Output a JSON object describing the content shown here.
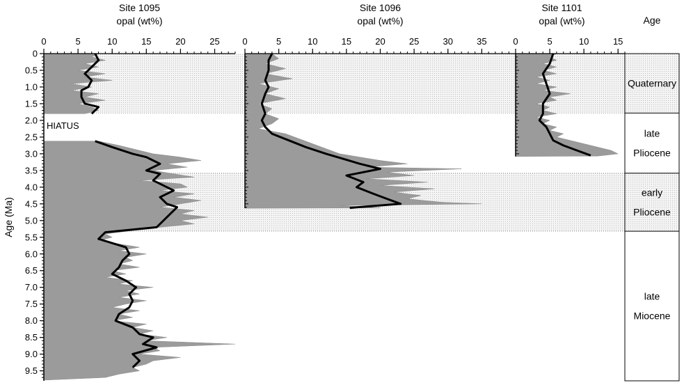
{
  "chart_data": {
    "type": "area",
    "y_axis": {
      "label": "Age (Ma)",
      "range": [
        0,
        9.8
      ],
      "reversed": true,
      "ticks": [
        "0",
        "0.5",
        "1.0",
        "1.5",
        "2.0",
        "2.5",
        "3.0",
        "3.5",
        "4.0",
        "4.5",
        "5.0",
        "5.5",
        "6.0",
        "6.5",
        "7.0",
        "7.5",
        "8.0",
        "8.5",
        "9.0",
        "9.5"
      ]
    },
    "panels": [
      {
        "title_line1": "Site 1095",
        "title_line2": "opal (wt%)",
        "xlim": [
          0,
          28
        ],
        "ticks": [
          "0",
          "5",
          "10",
          "15",
          "20",
          "25"
        ],
        "annotation": "HIATUS",
        "raw_segments": [
          [
            [
              0,
              8
            ],
            [
              0.1,
              7
            ],
            [
              0.2,
              9
            ],
            [
              0.3,
              6
            ],
            [
              0.4,
              8
            ],
            [
              0.5,
              5
            ],
            [
              0.6,
              9
            ],
            [
              0.7,
              6
            ],
            [
              0.8,
              10
            ],
            [
              0.9,
              4
            ],
            [
              1.0,
              7
            ],
            [
              1.1,
              4
            ],
            [
              1.2,
              8
            ],
            [
              1.3,
              6
            ],
            [
              1.4,
              9
            ],
            [
              1.5,
              5
            ],
            [
              1.6,
              7
            ],
            [
              1.7,
              8
            ],
            [
              1.8,
              6
            ]
          ],
          [
            [
              2.62,
              8
            ],
            [
              2.75,
              11
            ],
            [
              2.9,
              14
            ],
            [
              3.0,
              16
            ],
            [
              3.1,
              20
            ],
            [
              3.2,
              23
            ],
            [
              3.3,
              18
            ],
            [
              3.4,
              21
            ],
            [
              3.5,
              16
            ],
            [
              3.6,
              19
            ],
            [
              3.7,
              22
            ],
            [
              3.8,
              14
            ],
            [
              3.9,
              20
            ],
            [
              4.0,
              21
            ],
            [
              4.1,
              17
            ],
            [
              4.2,
              22
            ],
            [
              4.3,
              19
            ],
            [
              4.4,
              23
            ],
            [
              4.5,
              20
            ],
            [
              4.6,
              17
            ],
            [
              4.7,
              22
            ],
            [
              4.8,
              20
            ],
            [
              4.9,
              24
            ],
            [
              5.0,
              20
            ],
            [
              5.1,
              22
            ],
            [
              5.2,
              17
            ],
            [
              5.3,
              13
            ],
            [
              5.4,
              9
            ],
            [
              5.5,
              10
            ],
            [
              5.6,
              8
            ],
            [
              5.7,
              11
            ],
            [
              5.8,
              14
            ],
            [
              5.9,
              11
            ],
            [
              6.0,
              15
            ],
            [
              6.1,
              12
            ],
            [
              6.2,
              13
            ],
            [
              6.3,
              11
            ],
            [
              6.4,
              14
            ],
            [
              6.5,
              10
            ],
            [
              6.6,
              12
            ],
            [
              6.7,
              9
            ],
            [
              6.8,
              13
            ],
            [
              6.9,
              11
            ],
            [
              7.0,
              16
            ],
            [
              7.1,
              12
            ],
            [
              7.2,
              14
            ],
            [
              7.3,
              11
            ],
            [
              7.4,
              15
            ],
            [
              7.5,
              12
            ],
            [
              7.6,
              10
            ],
            [
              7.7,
              14
            ],
            [
              7.8,
              11
            ],
            [
              7.9,
              13
            ],
            [
              8.0,
              10
            ],
            [
              8.1,
              15
            ],
            [
              8.2,
              13
            ],
            [
              8.3,
              16
            ],
            [
              8.4,
              14
            ],
            [
              8.5,
              18
            ],
            [
              8.6,
              15
            ],
            [
              8.7,
              28
            ],
            [
              8.8,
              16
            ],
            [
              8.9,
              17
            ],
            [
              9.0,
              14
            ],
            [
              9.1,
              20
            ],
            [
              9.2,
              16
            ],
            [
              9.3,
              15
            ],
            [
              9.4,
              13
            ],
            [
              9.5,
              14
            ],
            [
              9.6,
              11
            ],
            [
              9.7,
              9
            ],
            [
              9.78,
              0
            ]
          ]
        ],
        "smooth_segments": [
          [
            [
              0,
              7.5
            ],
            [
              0.2,
              8
            ],
            [
              0.4,
              7
            ],
            [
              0.6,
              6
            ],
            [
              0.8,
              7
            ],
            [
              1.0,
              6.5
            ],
            [
              1.1,
              5.5
            ],
            [
              1.3,
              5.5
            ],
            [
              1.5,
              6
            ],
            [
              1.6,
              8
            ],
            [
              1.8,
              7
            ]
          ],
          [
            [
              2.62,
              7.5
            ],
            [
              2.8,
              10
            ],
            [
              3.0,
              13
            ],
            [
              3.1,
              15
            ],
            [
              3.2,
              16
            ],
            [
              3.3,
              17
            ],
            [
              3.5,
              15
            ],
            [
              3.6,
              17
            ],
            [
              3.8,
              16
            ],
            [
              4.0,
              18
            ],
            [
              4.1,
              19
            ],
            [
              4.3,
              17
            ],
            [
              4.5,
              18
            ],
            [
              4.6,
              19.5
            ],
            [
              4.8,
              18.5
            ],
            [
              5.0,
              17.5
            ],
            [
              5.2,
              16.5
            ],
            [
              5.35,
              9
            ],
            [
              5.55,
              8
            ],
            [
              5.8,
              12
            ],
            [
              6.0,
              12.5
            ],
            [
              6.2,
              11.5
            ],
            [
              6.4,
              11
            ],
            [
              6.6,
              10
            ],
            [
              6.8,
              12
            ],
            [
              7.0,
              13.5
            ],
            [
              7.2,
              12.5
            ],
            [
              7.4,
              13
            ],
            [
              7.6,
              12.5
            ],
            [
              7.8,
              11
            ],
            [
              8.0,
              10.5
            ],
            [
              8.2,
              13
            ],
            [
              8.4,
              14
            ],
            [
              8.5,
              16
            ],
            [
              8.7,
              14.5
            ],
            [
              8.8,
              16.5
            ],
            [
              9.0,
              13
            ],
            [
              9.2,
              14
            ],
            [
              9.4,
              13
            ]
          ]
        ]
      },
      {
        "title_line1": "Site 1096",
        "title_line2": "opal (wt%)",
        "xlim": [
          0,
          40
        ],
        "ticks": [
          "0",
          "5",
          "10",
          "15",
          "20",
          "25",
          "30",
          "35"
        ],
        "raw_segments": [
          [
            [
              0,
              4
            ],
            [
              0.15,
              5
            ],
            [
              0.3,
              3
            ],
            [
              0.45,
              6
            ],
            [
              0.6,
              3
            ],
            [
              0.75,
              7
            ],
            [
              0.9,
              2
            ],
            [
              1.05,
              5
            ],
            [
              1.2,
              3
            ],
            [
              1.35,
              6
            ],
            [
              1.5,
              2
            ],
            [
              1.65,
              4
            ],
            [
              1.8,
              3
            ],
            [
              1.95,
              5
            ],
            [
              2.1,
              4
            ],
            [
              2.25,
              2
            ],
            [
              2.4,
              6
            ],
            [
              2.55,
              8
            ],
            [
              2.7,
              10
            ],
            [
              2.85,
              12
            ],
            [
              3.0,
              14
            ],
            [
              3.1,
              17
            ],
            [
              3.2,
              20
            ],
            [
              3.3,
              24
            ],
            [
              3.4,
              18
            ],
            [
              3.45,
              32
            ],
            [
              3.55,
              21
            ],
            [
              3.65,
              25
            ],
            [
              3.75,
              18
            ],
            [
              3.85,
              27
            ],
            [
              3.95,
              20
            ],
            [
              4.05,
              28
            ],
            [
              4.15,
              22
            ],
            [
              4.25,
              26
            ],
            [
              4.35,
              24
            ],
            [
              4.45,
              29
            ],
            [
              4.5,
              35
            ],
            [
              4.55,
              14
            ],
            [
              4.62,
              20
            ],
            [
              4.63,
              0
            ]
          ]
        ],
        "smooth_segments": [
          [
            [
              0,
              4
            ],
            [
              0.2,
              3.5
            ],
            [
              0.5,
              3.5
            ],
            [
              0.8,
              3
            ],
            [
              1.0,
              3.5
            ],
            [
              1.2,
              3
            ],
            [
              1.5,
              2.5
            ],
            [
              1.8,
              3
            ],
            [
              2.0,
              2.5
            ],
            [
              2.2,
              3
            ],
            [
              2.4,
              4
            ],
            [
              2.6,
              6.5
            ],
            [
              2.8,
              9
            ],
            [
              3.0,
              12
            ],
            [
              3.15,
              14.5
            ],
            [
              3.3,
              17
            ],
            [
              3.45,
              20
            ],
            [
              3.65,
              15
            ],
            [
              3.85,
              17.5
            ],
            [
              4.0,
              16.5
            ],
            [
              4.2,
              19
            ],
            [
              4.35,
              21
            ],
            [
              4.5,
              23
            ],
            [
              4.62,
              15.5
            ]
          ]
        ]
      },
      {
        "title_line1": "Site 1101",
        "title_line2": "opal (wt%)",
        "xlim": [
          0,
          16
        ],
        "ticks": [
          "0",
          "5",
          "10",
          "15"
        ],
        "raw_segments": [
          [
            [
              0,
              6
            ],
            [
              0.1,
              5
            ],
            [
              0.2,
              6
            ],
            [
              0.3,
              4
            ],
            [
              0.4,
              6
            ],
            [
              0.5,
              4
            ],
            [
              0.6,
              6
            ],
            [
              0.7,
              3
            ],
            [
              0.8,
              5
            ],
            [
              0.9,
              3
            ],
            [
              1.0,
              6
            ],
            [
              1.1,
              4
            ],
            [
              1.2,
              8
            ],
            [
              1.3,
              5
            ],
            [
              1.4,
              6
            ],
            [
              1.5,
              3
            ],
            [
              1.6,
              5
            ],
            [
              1.7,
              4
            ],
            [
              1.8,
              6
            ],
            [
              1.9,
              3
            ],
            [
              2.0,
              5
            ],
            [
              2.1,
              4
            ],
            [
              2.2,
              6
            ],
            [
              2.3,
              5
            ],
            [
              2.4,
              7
            ],
            [
              2.5,
              6
            ],
            [
              2.6,
              8
            ],
            [
              2.7,
              10
            ],
            [
              2.8,
              12
            ],
            [
              2.9,
              14
            ],
            [
              3.0,
              15
            ],
            [
              3.07,
              12
            ],
            [
              3.08,
              0
            ]
          ]
        ],
        "smooth_segments": [
          [
            [
              0,
              5.5
            ],
            [
              0.3,
              5
            ],
            [
              0.6,
              4
            ],
            [
              0.9,
              4.5
            ],
            [
              1.2,
              5
            ],
            [
              1.5,
              4
            ],
            [
              1.8,
              4
            ],
            [
              2.0,
              3.5
            ],
            [
              2.2,
              4.5
            ],
            [
              2.4,
              5
            ],
            [
              2.6,
              5.5
            ],
            [
              2.75,
              7
            ],
            [
              2.9,
              9
            ],
            [
              3.05,
              11
            ]
          ]
        ]
      }
    ],
    "age_column": {
      "title": "Age",
      "epochs": [
        {
          "lines": [
            "Quaternary"
          ],
          "range": [
            0,
            1.78
          ],
          "shaded": true
        },
        {
          "lines": [
            "late",
            "Pliocene"
          ],
          "range": [
            1.78,
            3.58
          ],
          "shaded": false
        },
        {
          "lines": [
            "early",
            "Pliocene"
          ],
          "range": [
            3.58,
            5.32
          ],
          "shaded": true
        },
        {
          "lines": [
            "late",
            "Miocene"
          ],
          "range": [
            5.32,
            9.8
          ],
          "shaded": false
        }
      ]
    },
    "colors": {
      "raw_fill": "#9b9b9b",
      "smooth_line": "#000000",
      "epoch_shade": "#e4e4e4"
    }
  }
}
